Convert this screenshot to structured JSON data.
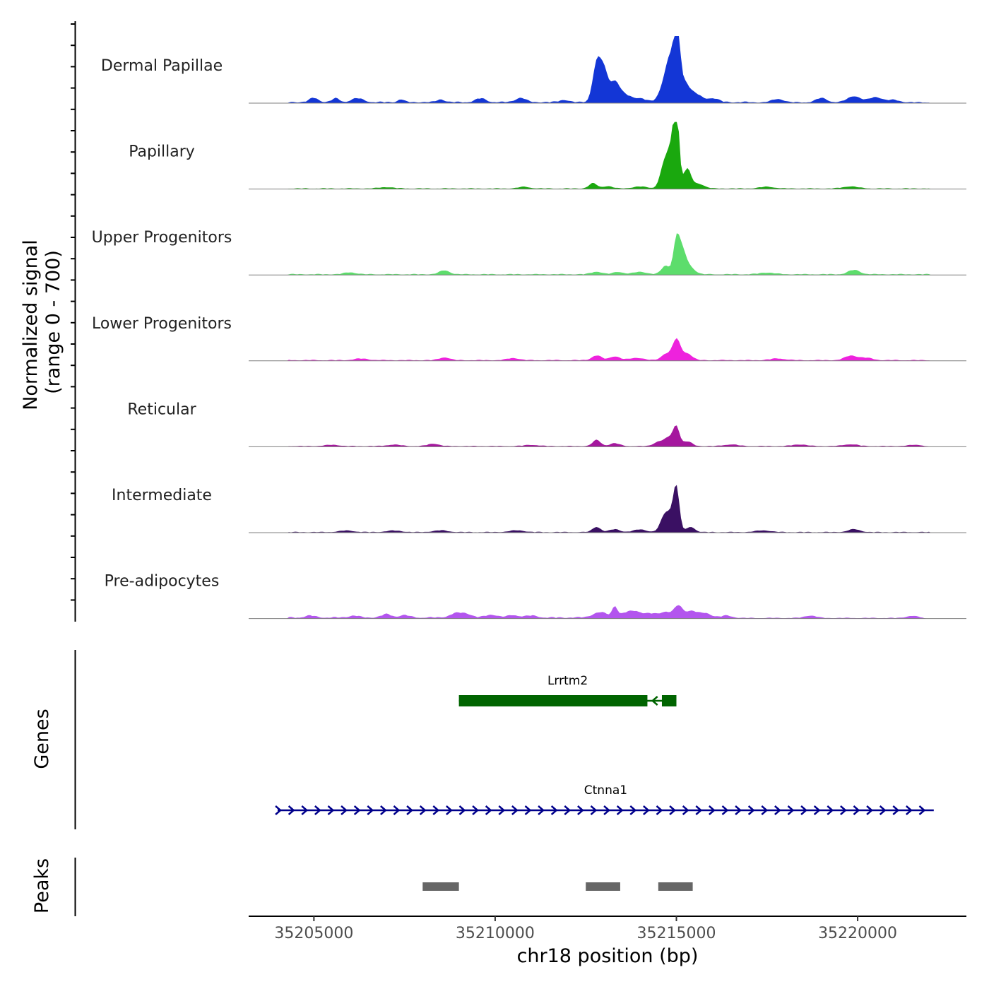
{
  "chart_data": {
    "type": "area",
    "title": "",
    "xlabel": "chr18 position (bp)",
    "ylabel_line1": "Normalized signal",
    "ylabel_line2": "(range 0 - 700)",
    "y_range": [
      0,
      700
    ],
    "x_range": [
      35203200,
      35223000
    ],
    "x_ticks": [
      35205000,
      35210000,
      35215000,
      35220000
    ],
    "x_tick_labels": [
      "35205000",
      "35210000",
      "35215000",
      "35220000"
    ],
    "genes_label": "Genes",
    "peaks_label": "Peaks",
    "series": [
      {
        "name": "Dermal Papillae",
        "color": "#1336d6",
        "background": [
          [
            35204300,
            35217000,
            18
          ],
          [
            35217000,
            35222000,
            14
          ]
        ],
        "peaks": [
          [
            35205000,
            45,
            120
          ],
          [
            35205600,
            40,
            100
          ],
          [
            35206200,
            40,
            160
          ],
          [
            35207400,
            30,
            80
          ],
          [
            35208500,
            30,
            100
          ],
          [
            35209600,
            40,
            140
          ],
          [
            35210700,
            45,
            140
          ],
          [
            35211900,
            25,
            120
          ],
          [
            35212800,
            390,
            110
          ],
          [
            35213000,
            310,
            110
          ],
          [
            35213300,
            210,
            130
          ],
          [
            35213600,
            70,
            160
          ],
          [
            35214000,
            40,
            160
          ],
          [
            35214700,
            200,
            150
          ],
          [
            35215020,
            690,
            65
          ],
          [
            35214900,
            420,
            140
          ],
          [
            35215200,
            190,
            130
          ],
          [
            35215500,
            90,
            180
          ],
          [
            35216000,
            40,
            160
          ],
          [
            35217800,
            35,
            160
          ],
          [
            35219000,
            45,
            150
          ],
          [
            35219900,
            65,
            180
          ],
          [
            35220500,
            55,
            180
          ],
          [
            35221000,
            25,
            160
          ]
        ]
      },
      {
        "name": "Papillary",
        "color": "#1aa80e",
        "background": [
          [
            35204300,
            35222000,
            10
          ]
        ],
        "peaks": [
          [
            35207000,
            14,
            200
          ],
          [
            35210800,
            18,
            150
          ],
          [
            35212700,
            55,
            110
          ],
          [
            35213100,
            25,
            130
          ],
          [
            35214000,
            20,
            200
          ],
          [
            35214650,
            200,
            110
          ],
          [
            35215000,
            690,
            70
          ],
          [
            35214880,
            430,
            130
          ],
          [
            35215300,
            200,
            100
          ],
          [
            35215600,
            50,
            160
          ],
          [
            35217500,
            18,
            200
          ],
          [
            35219800,
            22,
            200
          ]
        ]
      },
      {
        "name": "Upper Progenitors",
        "color": "#5ddd6c",
        "background": [
          [
            35204300,
            35222000,
            12
          ]
        ],
        "peaks": [
          [
            35206000,
            20,
            160
          ],
          [
            35208600,
            40,
            140
          ],
          [
            35212800,
            28,
            140
          ],
          [
            35213400,
            25,
            140
          ],
          [
            35214000,
            25,
            180
          ],
          [
            35214700,
            90,
            110
          ],
          [
            35215000,
            300,
            85
          ],
          [
            35215150,
            250,
            120
          ],
          [
            35215400,
            60,
            130
          ],
          [
            35217500,
            18,
            200
          ],
          [
            35219900,
            45,
            160
          ]
        ]
      },
      {
        "name": "Lower Progenitors",
        "color": "#ee22dd",
        "background": [
          [
            35204300,
            35222000,
            12
          ]
        ],
        "peaks": [
          [
            35206300,
            16,
            200
          ],
          [
            35208600,
            30,
            140
          ],
          [
            35210500,
            22,
            160
          ],
          [
            35212800,
            50,
            130
          ],
          [
            35213300,
            40,
            140
          ],
          [
            35213900,
            25,
            180
          ],
          [
            35214700,
            65,
            120
          ],
          [
            35215000,
            220,
            110
          ],
          [
            35215300,
            70,
            130
          ],
          [
            35217800,
            18,
            200
          ],
          [
            35219800,
            45,
            160
          ],
          [
            35220200,
            25,
            200
          ]
        ]
      },
      {
        "name": "Reticular",
        "color": "#a5179e",
        "background": [
          [
            35204300,
            35221800,
            10
          ]
        ],
        "peaks": [
          [
            35205500,
            14,
            200
          ],
          [
            35207200,
            16,
            200
          ],
          [
            35208300,
            26,
            160
          ],
          [
            35211000,
            14,
            200
          ],
          [
            35212800,
            65,
            110
          ],
          [
            35213300,
            30,
            140
          ],
          [
            35214500,
            45,
            130
          ],
          [
            35214800,
            90,
            130
          ],
          [
            35215000,
            190,
            85
          ],
          [
            35215300,
            50,
            130
          ],
          [
            35216500,
            18,
            200
          ],
          [
            35218400,
            18,
            200
          ],
          [
            35219800,
            20,
            200
          ],
          [
            35221600,
            14,
            200
          ]
        ]
      },
      {
        "name": "Intermediate",
        "color": "#3a1063",
        "background": [
          [
            35204300,
            35222000,
            10
          ]
        ],
        "peaks": [
          [
            35205900,
            16,
            200
          ],
          [
            35207200,
            16,
            200
          ],
          [
            35208500,
            18,
            200
          ],
          [
            35210600,
            18,
            200
          ],
          [
            35212800,
            55,
            110
          ],
          [
            35213300,
            30,
            140
          ],
          [
            35214000,
            28,
            170
          ],
          [
            35214650,
            110,
            110
          ],
          [
            35215000,
            390,
            80
          ],
          [
            35214850,
            180,
            150
          ],
          [
            35215400,
            55,
            110
          ],
          [
            35217400,
            18,
            200
          ],
          [
            35219900,
            30,
            160
          ]
        ]
      },
      {
        "name": "Pre-adipocytes",
        "color": "#b355ee",
        "background": [
          [
            35204300,
            35216500,
            18
          ],
          [
            35216500,
            35221800,
            10
          ]
        ],
        "peaks": [
          [
            35204900,
            20,
            140
          ],
          [
            35206100,
            20,
            140
          ],
          [
            35207000,
            35,
            140
          ],
          [
            35207500,
            25,
            140
          ],
          [
            35208900,
            40,
            160
          ],
          [
            35209200,
            38,
            160
          ],
          [
            35209900,
            30,
            160
          ],
          [
            35210500,
            25,
            160
          ],
          [
            35211000,
            20,
            160
          ],
          [
            35212900,
            55,
            200
          ],
          [
            35213300,
            110,
            70
          ],
          [
            35213600,
            45,
            160
          ],
          [
            35213900,
            60,
            160
          ],
          [
            35214300,
            40,
            160
          ],
          [
            35214700,
            60,
            150
          ],
          [
            35215050,
            120,
            110
          ],
          [
            35215400,
            70,
            160
          ],
          [
            35215800,
            45,
            160
          ],
          [
            35216400,
            20,
            160
          ],
          [
            35218700,
            25,
            160
          ],
          [
            35221500,
            22,
            160
          ]
        ]
      }
    ],
    "genes": [
      {
        "name": "Lrrtm2",
        "strand": "-",
        "color": "#006400",
        "start": 35209000,
        "end": 35215000,
        "exons": [
          [
            35209000,
            35214200
          ],
          [
            35214600,
            35215000
          ]
        ]
      },
      {
        "name": "Ctnna1",
        "strand": "+",
        "color": "#00008b",
        "start": 35204000,
        "end": 35222100,
        "exons": []
      }
    ],
    "peak_regions": [
      {
        "start": 35208000,
        "end": 35209000
      },
      {
        "start": 35212500,
        "end": 35213450
      },
      {
        "start": 35214500,
        "end": 35215450
      }
    ],
    "peak_color": "#666666"
  }
}
